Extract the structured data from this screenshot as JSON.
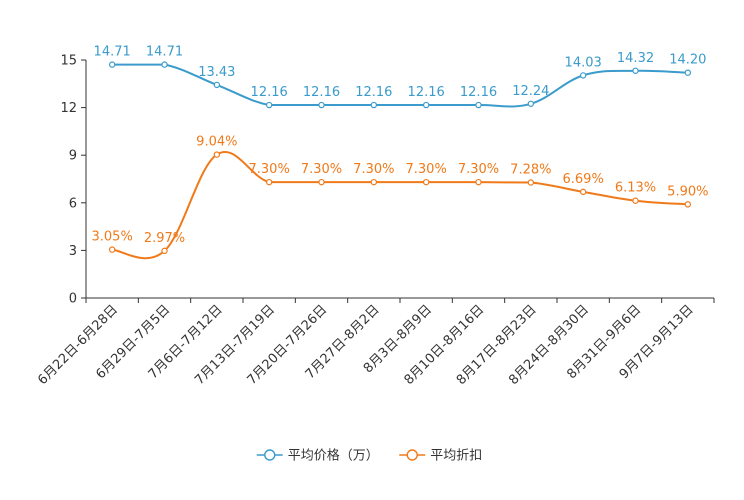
{
  "chart_data": {
    "type": "line",
    "categories": [
      "6月22日-6月28日",
      "6月29日-7月5日",
      "7月6日-7月12日",
      "7月13日-7月19日",
      "7月20日-7月26日",
      "7月27日-8月2日",
      "8月3日-8月9日",
      "8月10日-8月16日",
      "8月17日-8月23日",
      "8月24日-8月30日",
      "8月31日-9月6日",
      "9月7日-9月13日"
    ],
    "ylim": [
      0,
      15
    ],
    "yticks": [
      0,
      3,
      6,
      9,
      12,
      15
    ],
    "ytick_labels": [
      "0",
      "3",
      "6",
      "9",
      "12",
      "15"
    ],
    "series": [
      {
        "name": "平均价格（万）",
        "color": "#3a9bcc",
        "values": [
          14.71,
          14.71,
          13.43,
          12.16,
          12.16,
          12.16,
          12.16,
          12.16,
          12.24,
          14.03,
          14.32,
          14.2
        ],
        "labels": [
          "14.71",
          "14.71",
          "13.43",
          "12.16",
          "12.16",
          "12.16",
          "12.16",
          "12.16",
          "12.24",
          "14.03",
          "14.32",
          "14.20"
        ]
      },
      {
        "name": "平均折扣",
        "color": "#f07a1a",
        "values": [
          3.05,
          2.97,
          9.04,
          7.3,
          7.3,
          7.3,
          7.3,
          7.3,
          7.28,
          6.69,
          6.13,
          5.9
        ],
        "labels": [
          "3.05%",
          "2.97%",
          "9.04%",
          "7.30%",
          "7.30%",
          "7.30%",
          "7.30%",
          "7.30%",
          "7.28%",
          "6.69%",
          "6.13%",
          "5.90%"
        ]
      }
    ]
  }
}
